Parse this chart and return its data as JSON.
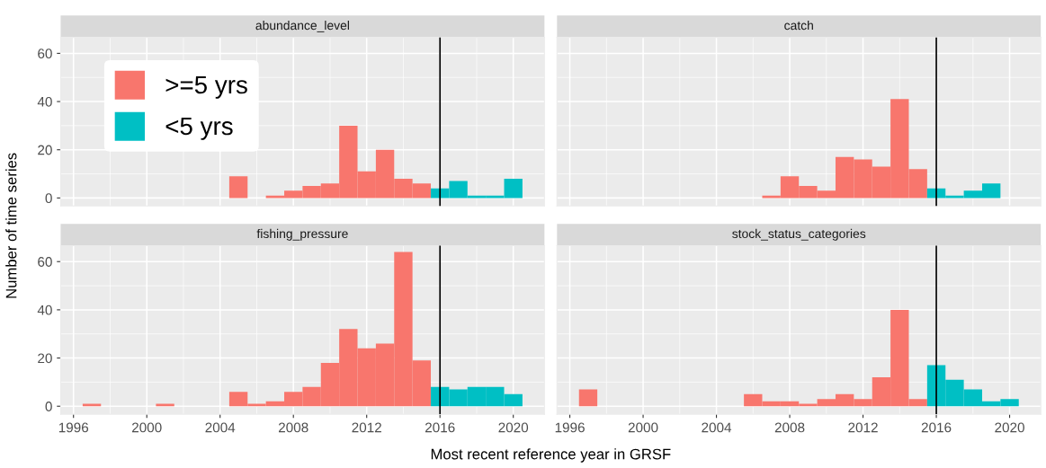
{
  "chart_data": [
    {
      "type": "histogram",
      "title": "abundance_level",
      "ylabel": "Number of time series",
      "bins": [
        1996.5,
        1997.5,
        1998.5,
        1999.5,
        2000.5,
        2001.5,
        2002.5,
        2003.5,
        2004.5,
        2005.5,
        2006.5,
        2007.5,
        2008.5,
        2009.5,
        2010.5,
        2011.5,
        2012.5,
        2013.5,
        2014.5,
        2015.5,
        2016.5,
        2017.5,
        2018.5,
        2019.5,
        2020.5
      ],
      "xlim": [
        1995.3,
        2021.7
      ],
      "ylim": [
        -3.3,
        66.6
      ],
      "xticks": [
        1996,
        2000,
        2004,
        2008,
        2012,
        2016,
        2020
      ],
      "yticks": [
        0,
        20,
        40,
        60
      ],
      "tick_labels": "y",
      "grid": true,
      "legend": "top left",
      "series": [
        {
          "name": ">=5 yrs",
          "color": "#f8766d",
          "values": [
            0,
            0,
            0,
            0,
            0,
            0,
            0,
            0,
            9,
            0,
            1,
            3,
            5,
            6,
            30,
            11,
            20,
            8,
            6,
            null,
            null,
            null,
            null,
            null
          ]
        },
        {
          "name": "<5 yrs",
          "color": "#00bfc4",
          "values": [
            null,
            null,
            null,
            null,
            null,
            null,
            null,
            null,
            null,
            null,
            null,
            null,
            null,
            null,
            null,
            null,
            null,
            null,
            null,
            4,
            7,
            1,
            1,
            8
          ]
        }
      ],
      "ref_lines": [
        {
          "axis": "x",
          "value": 2016,
          "color": "#000000"
        }
      ]
    },
    {
      "type": "histogram",
      "title": "catch",
      "bins": [
        1996.5,
        1997.5,
        1998.5,
        1999.5,
        2000.5,
        2001.5,
        2002.5,
        2003.5,
        2004.5,
        2005.5,
        2006.5,
        2007.5,
        2008.5,
        2009.5,
        2010.5,
        2011.5,
        2012.5,
        2013.5,
        2014.5,
        2015.5,
        2016.5,
        2017.5,
        2018.5,
        2019.5,
        2020.5
      ],
      "xlim": [
        1995.3,
        2021.7
      ],
      "ylim": [
        -3.3,
        66.6
      ],
      "xticks": [
        1996,
        2000,
        2004,
        2008,
        2012,
        2016,
        2020
      ],
      "yticks": [
        0,
        20,
        40,
        60
      ],
      "tick_labels": false,
      "grid": true,
      "series": [
        {
          "color": "#f8766d",
          "values": [
            0,
            0,
            0,
            0,
            0,
            0,
            0,
            0,
            0,
            0,
            1,
            9,
            5,
            3,
            17,
            16,
            13,
            41,
            12,
            null,
            null,
            null,
            null,
            null
          ]
        },
        {
          "color": "#00bfc4",
          "values": [
            null,
            null,
            null,
            null,
            null,
            null,
            null,
            null,
            null,
            null,
            null,
            null,
            null,
            null,
            null,
            null,
            null,
            null,
            null,
            4,
            1,
            3,
            6,
            0
          ]
        }
      ],
      "ref_lines": [
        {
          "axis": "x",
          "value": 2016,
          "color": "#000000"
        }
      ]
    },
    {
      "type": "histogram",
      "title": "fishing_pressure",
      "xlabel": "Most recent reference year in GRSF",
      "bins": [
        1996.5,
        1997.5,
        1998.5,
        1999.5,
        2000.5,
        2001.5,
        2002.5,
        2003.5,
        2004.5,
        2005.5,
        2006.5,
        2007.5,
        2008.5,
        2009.5,
        2010.5,
        2011.5,
        2012.5,
        2013.5,
        2014.5,
        2015.5,
        2016.5,
        2017.5,
        2018.5,
        2019.5,
        2020.5
      ],
      "xlim": [
        1995.3,
        2021.7
      ],
      "ylim": [
        -3.3,
        66.6
      ],
      "xticks": [
        1996,
        2000,
        2004,
        2008,
        2012,
        2016,
        2020
      ],
      "yticks": [
        0,
        20,
        40,
        60
      ],
      "grid": true,
      "series": [
        {
          "color": "#f8766d",
          "values": [
            1,
            0,
            0,
            0,
            1,
            0,
            0,
            0,
            6,
            1,
            2,
            6,
            8,
            18,
            32,
            24,
            26,
            64,
            19,
            null,
            null,
            null,
            null,
            null
          ]
        },
        {
          "color": "#00bfc4",
          "values": [
            null,
            null,
            null,
            null,
            null,
            null,
            null,
            null,
            null,
            null,
            null,
            null,
            null,
            null,
            null,
            null,
            null,
            null,
            null,
            8,
            7,
            8,
            8,
            5
          ]
        }
      ],
      "ref_lines": [
        {
          "axis": "x",
          "value": 2016,
          "color": "#000000"
        }
      ]
    },
    {
      "type": "histogram",
      "title": "stock_status_categories",
      "bins": [
        1996.5,
        1997.5,
        1998.5,
        1999.5,
        2000.5,
        2001.5,
        2002.5,
        2003.5,
        2004.5,
        2005.5,
        2006.5,
        2007.5,
        2008.5,
        2009.5,
        2010.5,
        2011.5,
        2012.5,
        2013.5,
        2014.5,
        2015.5,
        2016.5,
        2017.5,
        2018.5,
        2019.5,
        2020.5
      ],
      "xlim": [
        1995.3,
        2021.7
      ],
      "ylim": [
        -3.3,
        66.6
      ],
      "xticks": [
        1996,
        2000,
        2004,
        2008,
        2012,
        2016,
        2020
      ],
      "yticks": [
        0,
        20,
        40,
        60
      ],
      "tick_labels": "x",
      "grid": true,
      "series": [
        {
          "color": "#f8766d",
          "values": [
            7,
            0,
            0,
            0,
            0,
            0,
            0,
            0,
            0,
            5,
            2,
            2,
            1,
            3,
            5,
            3,
            12,
            40,
            3,
            null,
            null,
            null,
            null,
            null
          ]
        },
        {
          "color": "#00bfc4",
          "values": [
            null,
            null,
            null,
            null,
            null,
            null,
            null,
            null,
            null,
            null,
            null,
            null,
            null,
            null,
            null,
            null,
            null,
            null,
            null,
            17,
            11,
            7,
            2,
            3
          ]
        }
      ],
      "ref_lines": [
        {
          "axis": "x",
          "value": 2016,
          "color": "#000000"
        }
      ]
    }
  ]
}
